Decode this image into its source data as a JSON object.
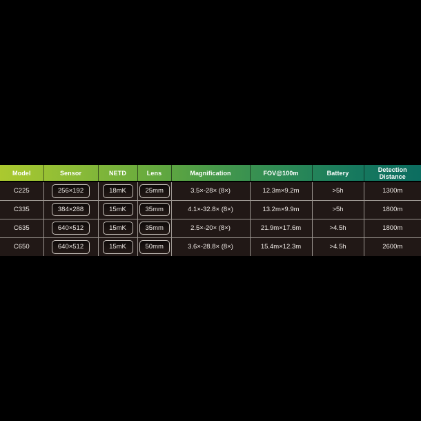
{
  "chart_data": {
    "type": "table",
    "title": "",
    "columns": [
      "Model",
      "Sensor",
      "NETD",
      "Lens",
      "Magnification",
      "FOV@100m",
      "Battery",
      "Detection Distance"
    ],
    "rows": [
      [
        "C225",
        "256×192",
        "18mK",
        "25mm",
        "3.5×-28× (8×)",
        "12.3m×9.2m",
        ">5h",
        "1300m"
      ],
      [
        "C335",
        "384×288",
        "15mK",
        "35mm",
        "4.1×-32.8× (8×)",
        "13.2m×9.9m",
        ">5h",
        "1800m"
      ],
      [
        "C635",
        "640×512",
        "15mK",
        "35mm",
        "2.5×-20× (8×)",
        "21.9m×17.6m",
        ">4.5h",
        "1800m"
      ],
      [
        "C650",
        "640×512",
        "15mK",
        "50mm",
        "3.6×-28.8× (8×)",
        "15.4m×12.3m",
        ">4.5h",
        "2600m"
      ]
    ]
  },
  "colors": {
    "page_background": "#000000",
    "header_gradient_left": "#abc92f",
    "header_gradient_mid": "#45984b",
    "header_gradient_right": "#0c6d60",
    "header_text": "#ffffff",
    "row_background": "#211816",
    "cell_text": "#efeae6",
    "grid_line": "#9d9792",
    "chip_border": "#cbc5bf"
  }
}
